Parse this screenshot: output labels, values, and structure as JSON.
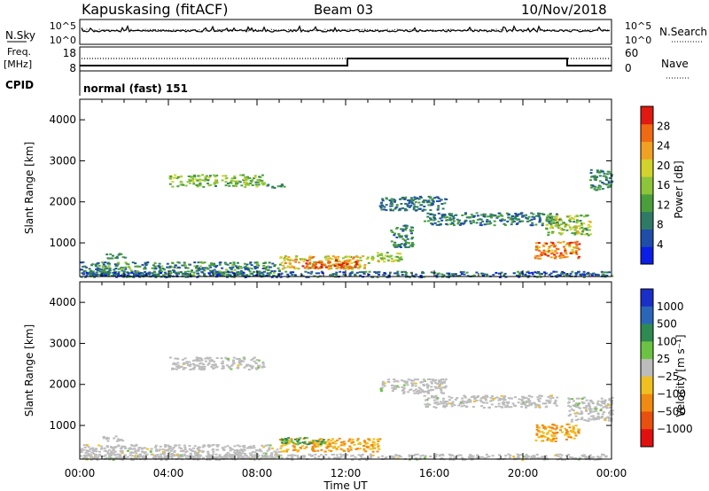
{
  "header": {
    "station": "Kapuskasing (fitACF)",
    "beam": "Beam 03",
    "date": "10/Nov/2018"
  },
  "strips": {
    "noise": {
      "left_label": "N.Sky",
      "left_ticks": [
        "10^5",
        "10^0"
      ],
      "right_label": "N.Search",
      "right_ticks": [
        "10^5",
        "10^0"
      ]
    },
    "frequency": {
      "left_label_top": "Freq.",
      "left_label_bottom": "[MHz]",
      "left_ticks": [
        "18",
        "8"
      ],
      "right_label": "Nave",
      "right_ticks": [
        "60",
        "0"
      ]
    },
    "cpid": {
      "label": "CPID",
      "value": "normal (fast) 151"
    }
  },
  "colors": {
    "power": [
      "#0a1ee6",
      "#1e4ea8",
      "#2f7a66",
      "#4a9e3c",
      "#8cc43a",
      "#d2d22c",
      "#f0a022",
      "#f06a14",
      "#e01a10"
    ],
    "velocity": [
      "#1a2ec8",
      "#2a66b8",
      "#2f8a52",
      "#6cc242",
      "#bcbcbc",
      "#f0c020",
      "#f08a10",
      "#e85010",
      "#e01010"
    ],
    "ground_scatter": "#bcbcbc"
  },
  "chart_data": [
    {
      "type": "heatmap",
      "panel": "power",
      "xlabel": "",
      "ylabel": "Slant Range [km]",
      "xlim": [
        0,
        24
      ],
      "ylim": [
        180,
        4500
      ],
      "yticks": [
        "1000",
        "2000",
        "3000",
        "4000"
      ],
      "colorbar": {
        "label": "Power [dB]",
        "range": [
          0,
          32
        ],
        "ticks": [
          "4",
          "8",
          "12",
          "16",
          "20",
          "24",
          "28"
        ]
      },
      "regions": [
        {
          "t": [
            4.0,
            8.3
          ],
          "r": [
            2380,
            2680
          ],
          "v": [
            10,
            20
          ]
        },
        {
          "t": [
            8.4,
            9.2
          ],
          "r": [
            2350,
            2450
          ],
          "v": [
            8,
            14
          ]
        },
        {
          "t": [
            1.0,
            2.0
          ],
          "r": [
            630,
            760
          ],
          "v": [
            8,
            14
          ]
        },
        {
          "t": [
            0.0,
            9.0
          ],
          "r": [
            200,
            550
          ],
          "v": [
            4,
            16
          ]
        },
        {
          "t": [
            9.0,
            13.0
          ],
          "r": [
            380,
            700
          ],
          "v": [
            14,
            26
          ]
        },
        {
          "t": [
            10.0,
            12.5
          ],
          "r": [
            400,
            600
          ],
          "v": [
            24,
            32
          ]
        },
        {
          "t": [
            13.0,
            14.5
          ],
          "r": [
            560,
            800
          ],
          "v": [
            12,
            22
          ]
        },
        {
          "t": [
            14.0,
            15.0
          ],
          "r": [
            900,
            1450
          ],
          "v": [
            6,
            14
          ]
        },
        {
          "t": [
            13.5,
            16.5
          ],
          "r": [
            1800,
            2150
          ],
          "v": [
            4,
            12
          ]
        },
        {
          "t": [
            15.5,
            21.5
          ],
          "r": [
            1450,
            1750
          ],
          "v": [
            4,
            14
          ]
        },
        {
          "t": [
            21.0,
            23.0
          ],
          "r": [
            1200,
            1700
          ],
          "v": [
            10,
            22
          ]
        },
        {
          "t": [
            23.0,
            24.0
          ],
          "r": [
            2300,
            2800
          ],
          "v": [
            6,
            14
          ]
        },
        {
          "t": [
            20.5,
            22.5
          ],
          "r": [
            630,
            1050
          ],
          "v": [
            20,
            30
          ]
        },
        {
          "t": [
            0.0,
            24.0
          ],
          "r": [
            180,
            320
          ],
          "v": [
            2,
            12
          ]
        }
      ]
    },
    {
      "type": "heatmap",
      "panel": "velocity",
      "xlabel": "Time UT",
      "ylabel": "Slant Range [km]",
      "xlim": [
        0,
        24
      ],
      "ylim": [
        180,
        4500
      ],
      "xticks": [
        "00:00",
        "04:00",
        "08:00",
        "12:00",
        "16:00",
        "20:00",
        "00:00"
      ],
      "yticks": [
        "1000",
        "2000",
        "3000",
        "4000"
      ],
      "colorbar": {
        "label": "Velocity [m s⁻¹]",
        "ticks": [
          "1000",
          "500",
          "100",
          "25",
          "−25",
          "−100",
          "−500",
          "−1000"
        ]
      },
      "regions": [
        {
          "t": [
            4.0,
            8.3
          ],
          "r": [
            2380,
            2680
          ],
          "v": "ground"
        },
        {
          "t": [
            1.0,
            2.0
          ],
          "r": [
            630,
            760
          ],
          "v": "ground"
        },
        {
          "t": [
            0.0,
            9.0
          ],
          "r": [
            200,
            550
          ],
          "v": "ground"
        },
        {
          "t": [
            9.0,
            13.5
          ],
          "r": [
            380,
            700
          ],
          "v": "negative"
        },
        {
          "t": [
            9.0,
            11.0
          ],
          "r": [
            560,
            720
          ],
          "v": "positive"
        },
        {
          "t": [
            13.5,
            16.5
          ],
          "r": [
            1800,
            2150
          ],
          "v": "ground"
        },
        {
          "t": [
            15.5,
            21.5
          ],
          "r": [
            1450,
            1750
          ],
          "v": "ground"
        },
        {
          "t": [
            20.5,
            22.5
          ],
          "r": [
            630,
            1050
          ],
          "v": "negative"
        },
        {
          "t": [
            22.0,
            24.0
          ],
          "r": [
            1100,
            1700
          ],
          "v": "ground"
        },
        {
          "t": [
            0.0,
            24.0
          ],
          "r": [
            180,
            320
          ],
          "v": "ground"
        }
      ]
    }
  ]
}
